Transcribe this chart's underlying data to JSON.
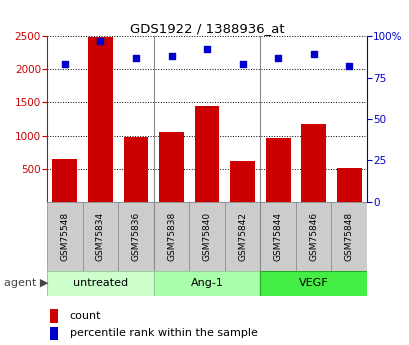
{
  "title": "GDS1922 / 1388936_at",
  "samples": [
    "GSM75548",
    "GSM75834",
    "GSM75836",
    "GSM75838",
    "GSM75840",
    "GSM75842",
    "GSM75844",
    "GSM75846",
    "GSM75848"
  ],
  "counts": [
    650,
    2490,
    980,
    1050,
    1450,
    620,
    960,
    1170,
    510
  ],
  "percentile_ranks": [
    83,
    97,
    87,
    88,
    92,
    83,
    87,
    89,
    82
  ],
  "groups": [
    {
      "label": "untreated",
      "indices": [
        0,
        1,
        2
      ],
      "color": "#ccffcc",
      "edge": "#99cc99"
    },
    {
      "label": "Ang-1",
      "indices": [
        3,
        4,
        5
      ],
      "color": "#aaffaa",
      "edge": "#99cc99"
    },
    {
      "label": "VEGF",
      "indices": [
        6,
        7,
        8
      ],
      "color": "#44ee44",
      "edge": "#22aa22"
    }
  ],
  "ylim_left": [
    0,
    2500
  ],
  "ylim_right": [
    0,
    100
  ],
  "yticks_left": [
    500,
    1000,
    1500,
    2000,
    2500
  ],
  "yticks_right": [
    0,
    25,
    50,
    75,
    100
  ],
  "bar_color": "#cc0000",
  "dot_color": "#0000cc",
  "plot_bg_color": "#ffffff",
  "grid_color": "#000000",
  "legend_count_label": "count",
  "legend_percentile_label": "percentile rank within the sample",
  "left_axis_color": "#cc0000",
  "right_axis_color": "#0000cc",
  "sample_box_color": "#cccccc",
  "sample_box_edge": "#888888",
  "agent_label": "agent",
  "agent_arrow": "▶"
}
